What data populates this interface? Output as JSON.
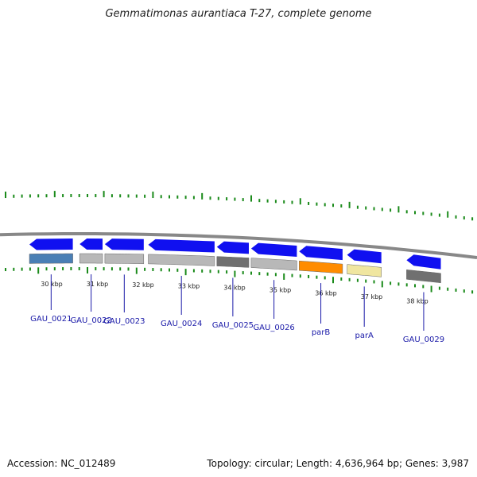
{
  "title": "Gemmatimonas aurantiaca T-27, complete genome",
  "footer": {
    "accession": "Accession: NC_012489",
    "stats": "Topology: circular; Length: 4,636,964 bp; Genes: 3,987"
  },
  "colors": {
    "tick": "#1a8a1a",
    "backbone": "#888888",
    "forward_gene": "#1010f0",
    "gene_label": "#1a1aa8",
    "cog_blue": "#4a7fb5",
    "cog_gray": "#b8b8b8",
    "cog_dark": "#707070",
    "cog_orange": "#ff8c00",
    "cog_yellow": "#f0e6a0"
  },
  "scale_labels": [
    "30 kbp",
    "31 kbp",
    "32 kbp",
    "33 kbp",
    "34 kbp",
    "35 kbp",
    "36 kbp",
    "37 kbp",
    "38 kbp"
  ],
  "genes": [
    {
      "name": "GAU_0021",
      "start_kbp": 29.6,
      "end_kbp": 30.55,
      "cog": "cog_blue"
    },
    {
      "name": "GAU_0022",
      "start_kbp": 30.7,
      "end_kbp": 31.2,
      "cog": "cog_gray"
    },
    {
      "name": "GAU_0023",
      "start_kbp": 31.25,
      "end_kbp": 32.1,
      "cog": "cog_gray"
    },
    {
      "name": "GAU_0024",
      "start_kbp": 32.2,
      "end_kbp": 33.65,
      "cog": "cog_gray"
    },
    {
      "name": "GAU_0025",
      "start_kbp": 33.7,
      "end_kbp": 34.4,
      "cog": "cog_dark"
    },
    {
      "name": "GAU_0026",
      "start_kbp": 34.45,
      "end_kbp": 35.45,
      "cog": "cog_gray"
    },
    {
      "name": "parB",
      "start_kbp": 35.5,
      "end_kbp": 36.45,
      "cog": "cog_orange"
    },
    {
      "name": "parA",
      "start_kbp": 36.55,
      "end_kbp": 37.3,
      "cog": "cog_yellow"
    },
    {
      "name": "GAU_0029",
      "start_kbp": 37.85,
      "end_kbp": 38.6,
      "cog": "cog_dark"
    }
  ]
}
